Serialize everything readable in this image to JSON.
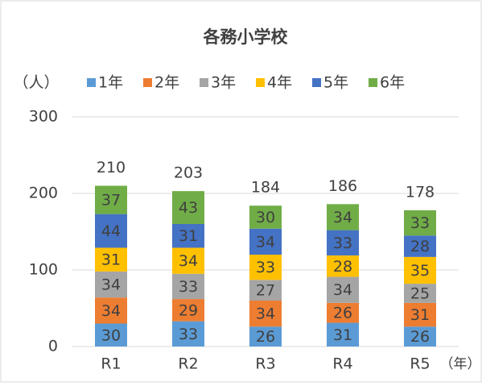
{
  "chart_data": {
    "type": "stacked_bar",
    "title": "各務小学校",
    "y_label": "（人）",
    "x_label": "（年）",
    "categories": [
      "R1",
      "R2",
      "R3",
      "R4",
      "R5"
    ],
    "series": [
      {
        "name": "1年",
        "color": "#5b9bd5",
        "values": [
          30,
          33,
          26,
          31,
          26
        ]
      },
      {
        "name": "2年",
        "color": "#ed7d31",
        "values": [
          34,
          29,
          34,
          26,
          31
        ]
      },
      {
        "name": "3年",
        "color": "#a5a5a5",
        "values": [
          34,
          33,
          27,
          34,
          25
        ]
      },
      {
        "name": "4年",
        "color": "#ffc000",
        "values": [
          31,
          34,
          33,
          28,
          35
        ]
      },
      {
        "name": "5年",
        "color": "#4472c4",
        "values": [
          44,
          31,
          34,
          33,
          28
        ]
      },
      {
        "name": "6年",
        "color": "#70ad47",
        "values": [
          37,
          43,
          30,
          34,
          33
        ]
      }
    ],
    "totals": [
      210,
      203,
      184,
      186,
      178
    ],
    "ylim": [
      0,
      300
    ],
    "yticks": [
      0,
      100,
      200,
      300
    ],
    "grid": true,
    "legend": "top"
  }
}
